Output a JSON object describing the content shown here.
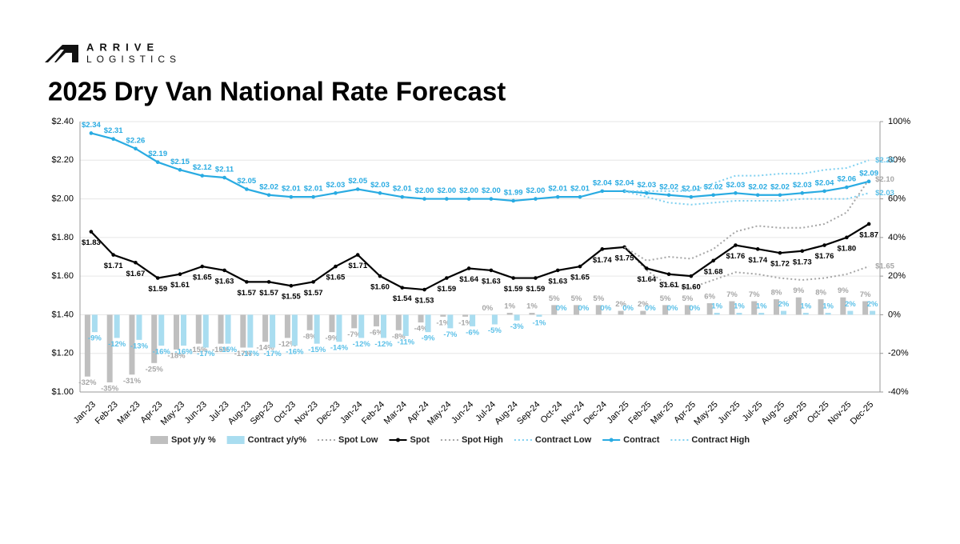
{
  "header": {
    "logo_top": "ARRIVE",
    "logo_bottom": "LOGISTICS"
  },
  "chart_data": {
    "type": "combo",
    "title": "2025 Dry Van National Rate Forecast",
    "categories": [
      "Jan-23",
      "Feb-23",
      "Mar-23",
      "Apr-23",
      "May-23",
      "Jun-23",
      "Jul-23",
      "Aug-23",
      "Sep-23",
      "Oct-23",
      "Nov-23",
      "Dec-23",
      "Jan-24",
      "Feb-24",
      "Mar-24",
      "Apr-24",
      "May-24",
      "Jun-24",
      "Jul-24",
      "Aug-24",
      "Sep-24",
      "Oct-24",
      "Nov-24",
      "Dec-24",
      "Jan-25",
      "Feb-25",
      "Mar-25",
      "Apr-25",
      "May-25",
      "Jun-25",
      "Jul-25",
      "Aug-25",
      "Sep-25",
      "Oct-25",
      "Nov-25",
      "Dec-25"
    ],
    "ylim": [
      1.0,
      2.4
    ],
    "yticks": [
      {
        "value": 1.0,
        "label": "$1.00"
      },
      {
        "value": 1.2,
        "label": "$1.20"
      },
      {
        "value": 1.4,
        "label": "$1.40"
      },
      {
        "value": 1.6,
        "label": "$1.60"
      },
      {
        "value": 1.8,
        "label": "$1.80"
      },
      {
        "value": 2.0,
        "label": "$2.00"
      },
      {
        "value": 2.2,
        "label": "$2.20"
      },
      {
        "value": 2.4,
        "label": "$2.40"
      }
    ],
    "y2lim": [
      -40,
      100
    ],
    "y2ticks": [
      {
        "value": -40,
        "label": "-40%"
      },
      {
        "value": -20,
        "label": "-20%"
      },
      {
        "value": 0,
        "label": "0%"
      },
      {
        "value": 20,
        "label": "20%"
      },
      {
        "value": 40,
        "label": "40%"
      },
      {
        "value": 60,
        "label": "60%"
      },
      {
        "value": 80,
        "label": "80%"
      },
      {
        "value": 100,
        "label": "100%"
      }
    ],
    "grid": true,
    "legend": "bottom",
    "series": [
      {
        "name": "Spot y/y %",
        "type": "bar",
        "axis": "y2",
        "color": "#bfbfbf",
        "label_color": "#a6a6a6",
        "values": [
          -32,
          -35,
          -31,
          -25,
          -18,
          -15,
          -15,
          -17,
          -14,
          -12,
          -8,
          -9,
          -7,
          -6,
          -8,
          -4,
          -1,
          -1,
          0,
          1,
          1,
          5,
          5,
          5,
          2,
          2,
          5,
          5,
          6,
          7,
          7,
          8,
          9,
          8,
          9,
          7
        ],
        "value_labels": [
          "-32%",
          "-35%",
          "-31%",
          "-25%",
          "-18%",
          "-15%",
          "-15%",
          "-17%",
          "-14%",
          "-12%",
          "-8%",
          "-9%",
          "-7%",
          "-6%",
          "-8%",
          "-4%",
          "-1%",
          "-1%",
          "0%",
          "1%",
          "1%",
          "5%",
          "5%",
          "5%",
          "2%",
          "2%",
          "5%",
          "5%",
          "6%",
          "7%",
          "7%",
          "8%",
          "9%",
          "8%",
          "9%",
          "7%"
        ]
      },
      {
        "name": "Contract y/y%",
        "type": "bar",
        "axis": "y2",
        "color": "#a9ddf0",
        "label_color": "#5bc0e8",
        "values": [
          -9,
          -12,
          -13,
          -16,
          -16,
          -17,
          -15,
          -17,
          -17,
          -16,
          -15,
          -14,
          -12,
          -12,
          -11,
          -9,
          -7,
          -6,
          -5,
          -3,
          -1,
          0,
          0,
          0,
          0,
          0,
          0,
          0,
          1,
          1,
          1,
          2,
          1,
          1,
          2,
          2
        ],
        "value_labels": [
          "-9%",
          "-12%",
          "-13%",
          "-16%",
          "-16%",
          "-17%",
          "-15%",
          "-17%",
          "-17%",
          "-16%",
          "-15%",
          "-14%",
          "-12%",
          "-12%",
          "-11%",
          "-9%",
          "-7%",
          "-6%",
          "-5%",
          "-3%",
          "-1%",
          "0%",
          "0%",
          "0%",
          "0%",
          "0%",
          "0%",
          "0%",
          "1%",
          "1%",
          "1%",
          "2%",
          "1%",
          "1%",
          "2%",
          "2%"
        ]
      },
      {
        "name": "Spot Low",
        "type": "line",
        "dash": true,
        "color": "#a6a6a6",
        "label_color": "#a6a6a6",
        "values": [
          null,
          null,
          null,
          null,
          null,
          null,
          null,
          null,
          null,
          null,
          null,
          null,
          null,
          null,
          null,
          null,
          null,
          null,
          null,
          null,
          null,
          null,
          null,
          null,
          1.75,
          1.63,
          1.55,
          1.54,
          1.58,
          1.62,
          1.61,
          1.59,
          1.58,
          1.59,
          1.61,
          1.65
        ],
        "value_labels": [
          null,
          null,
          null,
          null,
          null,
          null,
          null,
          null,
          null,
          null,
          null,
          null,
          null,
          null,
          null,
          null,
          null,
          null,
          null,
          null,
          null,
          null,
          null,
          null,
          null,
          null,
          null,
          null,
          null,
          null,
          null,
          null,
          null,
          null,
          null,
          "$1.65"
        ]
      },
      {
        "name": "Spot",
        "type": "line",
        "dash": false,
        "color": "#000000",
        "label_color": "#000000",
        "values": [
          1.83,
          1.71,
          1.67,
          1.59,
          1.61,
          1.65,
          1.63,
          1.57,
          1.57,
          1.55,
          1.57,
          1.65,
          1.71,
          1.6,
          1.54,
          1.53,
          1.59,
          1.64,
          1.63,
          1.59,
          1.59,
          1.63,
          1.65,
          1.74,
          1.75,
          1.64,
          1.61,
          1.6,
          1.68,
          1.76,
          1.74,
          1.72,
          1.73,
          1.76,
          1.8,
          1.87
        ],
        "value_labels": [
          "$1.83",
          "$1.71",
          "$1.67",
          "$1.59",
          "$1.61",
          "$1.65",
          "$1.63",
          "$1.57",
          "$1.57",
          "$1.55",
          "$1.57",
          "$1.65",
          "$1.71",
          "$1.60",
          "$1.54",
          "$1.53",
          "$1.59",
          "$1.64",
          "$1.63",
          "$1.59",
          "$1.59",
          "$1.63",
          "$1.65",
          "$1.74",
          "$1.75",
          "$1.64",
          "$1.61",
          "$1.60",
          "$1.68",
          "$1.76",
          "$1.74",
          "$1.72",
          "$1.73",
          "$1.76",
          "$1.80",
          "$1.87"
        ]
      },
      {
        "name": "Spot High",
        "type": "line",
        "dash": true,
        "color": "#a6a6a6",
        "label_color": "#a6a6a6",
        "values": [
          null,
          null,
          null,
          null,
          null,
          null,
          null,
          null,
          null,
          null,
          null,
          null,
          null,
          null,
          null,
          null,
          null,
          null,
          null,
          null,
          null,
          null,
          null,
          null,
          1.75,
          1.68,
          1.7,
          1.69,
          1.74,
          1.83,
          1.86,
          1.85,
          1.85,
          1.87,
          1.93,
          2.1
        ],
        "value_labels": [
          null,
          null,
          null,
          null,
          null,
          null,
          null,
          null,
          null,
          null,
          null,
          null,
          null,
          null,
          null,
          null,
          null,
          null,
          null,
          null,
          null,
          null,
          null,
          null,
          null,
          null,
          null,
          null,
          null,
          null,
          null,
          null,
          null,
          null,
          null,
          "$2.10"
        ]
      },
      {
        "name": "Contract Low",
        "type": "line",
        "dash": true,
        "color": "#7fd0f0",
        "label_color": "#5bc0e8",
        "values": [
          null,
          null,
          null,
          null,
          null,
          null,
          null,
          null,
          null,
          null,
          null,
          null,
          null,
          null,
          null,
          null,
          null,
          null,
          null,
          null,
          null,
          null,
          null,
          null,
          2.04,
          2.01,
          1.98,
          1.97,
          1.98,
          1.99,
          1.99,
          1.99,
          2.0,
          2.0,
          2.0,
          2.03
        ],
        "value_labels": [
          null,
          null,
          null,
          null,
          null,
          null,
          null,
          null,
          null,
          null,
          null,
          null,
          null,
          null,
          null,
          null,
          null,
          null,
          null,
          null,
          null,
          null,
          null,
          null,
          null,
          null,
          null,
          null,
          null,
          null,
          null,
          null,
          null,
          null,
          null,
          "$2.03"
        ]
      },
      {
        "name": "Contract",
        "type": "line",
        "dash": false,
        "color": "#29abe2",
        "label_color": "#29abe2",
        "values": [
          2.34,
          2.31,
          2.26,
          2.19,
          2.15,
          2.12,
          2.11,
          2.05,
          2.02,
          2.01,
          2.01,
          2.03,
          2.05,
          2.03,
          2.01,
          2.0,
          2.0,
          2.0,
          2.0,
          1.99,
          2.0,
          2.01,
          2.01,
          2.04,
          2.04,
          2.03,
          2.02,
          2.01,
          2.02,
          2.03,
          2.02,
          2.02,
          2.03,
          2.04,
          2.06,
          2.09
        ],
        "value_labels": [
          "$2.34",
          "$2.31",
          "$2.26",
          "$2.19",
          "$2.15",
          "$2.12",
          "$2.11",
          "$2.05",
          "$2.02",
          "$2.01",
          "$2.01",
          "$2.03",
          "$2.05",
          "$2.03",
          "$2.01",
          "$2.00",
          "$2.00",
          "$2.00",
          "$2.00",
          "$1.99",
          "$2.00",
          "$2.01",
          "$2.01",
          "$2.04",
          "$2.04",
          "$2.03",
          "$2.02",
          "$2.01",
          "$2.02",
          "$2.03",
          "$2.02",
          "$2.02",
          "$2.03",
          "$2.04",
          "$2.06",
          "$2.09"
        ]
      },
      {
        "name": "Contract High",
        "type": "line",
        "dash": true,
        "color": "#7fd0f0",
        "label_color": "#5bc0e8",
        "values": [
          null,
          null,
          null,
          null,
          null,
          null,
          null,
          null,
          null,
          null,
          null,
          null,
          null,
          null,
          null,
          null,
          null,
          null,
          null,
          null,
          null,
          null,
          null,
          null,
          2.04,
          2.04,
          2.04,
          2.04,
          2.08,
          2.12,
          2.12,
          2.13,
          2.13,
          2.15,
          2.16,
          2.2
        ],
        "value_labels": [
          null,
          null,
          null,
          null,
          null,
          null,
          null,
          null,
          null,
          null,
          null,
          null,
          null,
          null,
          null,
          null,
          null,
          null,
          null,
          null,
          null,
          null,
          null,
          null,
          null,
          null,
          null,
          null,
          null,
          null,
          null,
          null,
          null,
          null,
          null,
          "$2.20"
        ]
      }
    ]
  }
}
